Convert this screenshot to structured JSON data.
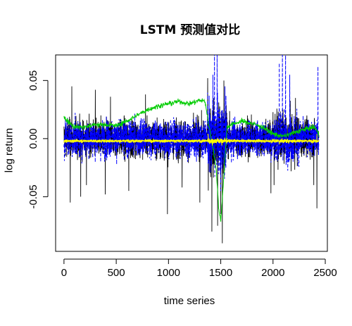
{
  "chart_data": {
    "type": "line",
    "title": "LSTM 预测值对比",
    "xlabel": "time series",
    "ylabel": "log return",
    "xlim": [
      -80,
      2520
    ],
    "ylim": [
      -0.097,
      0.072
    ],
    "xticks": [
      0,
      500,
      1000,
      1500,
      2000,
      2500
    ],
    "xtick_labels": [
      "0",
      "500",
      "1000",
      "1500",
      "2000",
      "2500"
    ],
    "yticks": [
      -0.05,
      0.0,
      0.05
    ],
    "ytick_labels": [
      "-0.05",
      "0.00",
      "0.05"
    ],
    "grid": false,
    "legend": "none",
    "n_points": 2440,
    "series": [
      {
        "role": "actual",
        "color": "#000000",
        "style": "solid",
        "base": 0.0,
        "noise_sd": 0.011,
        "spikes": [
          [
            60,
            -0.055
          ],
          [
            75,
            0.045
          ],
          [
            160,
            -0.05
          ],
          [
            215,
            -0.04
          ],
          [
            300,
            0.042
          ],
          [
            395,
            -0.048
          ],
          [
            445,
            0.036
          ],
          [
            620,
            -0.045
          ],
          [
            780,
            0.038
          ],
          [
            990,
            -0.065
          ],
          [
            1130,
            -0.042
          ],
          [
            1300,
            -0.055
          ],
          [
            1375,
            0.052
          ],
          [
            1415,
            -0.08
          ],
          [
            1470,
            -0.075
          ],
          [
            1500,
            -0.065
          ],
          [
            1515,
            -0.09
          ],
          [
            1530,
            0.05
          ],
          [
            1980,
            -0.047
          ],
          [
            2010,
            -0.04
          ],
          [
            2215,
            0.035
          ],
          [
            2390,
            -0.04
          ],
          [
            2420,
            -0.06
          ]
        ]
      },
      {
        "role": "predicted",
        "color": "#0000ff",
        "style": "dashed",
        "base": 0.0,
        "noise_sd": 0.011,
        "spikes": [
          [
            1425,
            0.055
          ],
          [
            1440,
            0.075
          ],
          [
            1465,
            0.078
          ],
          [
            1540,
            0.045
          ],
          [
            2060,
            0.065
          ],
          [
            2090,
            0.078
          ],
          [
            2120,
            0.078
          ],
          [
            2160,
            0.055
          ],
          [
            2430,
            0.062
          ],
          [
            1500,
            -0.045
          ]
        ]
      },
      {
        "role": "predicted",
        "color": "#00cc00",
        "style": "solid",
        "x": [
          0,
          100,
          200,
          300,
          400,
          500,
          600,
          700,
          800,
          900,
          1000,
          1100,
          1200,
          1300,
          1350,
          1380,
          1400,
          1430,
          1460,
          1480,
          1500,
          1520,
          1560,
          1600,
          1700,
          1800,
          1900,
          2000,
          2100,
          2200,
          2300,
          2400,
          2440
        ],
        "values": [
          0.018,
          0.01,
          0.01,
          0.012,
          0.012,
          0.011,
          0.015,
          0.02,
          0.025,
          0.028,
          0.03,
          0.032,
          0.03,
          0.033,
          0.032,
          0.015,
          0.005,
          -0.01,
          -0.03,
          -0.06,
          -0.07,
          -0.045,
          0.01,
          0.012,
          0.015,
          0.013,
          0.01,
          0.004,
          0.002,
          0.005,
          0.008,
          0.01,
          0.003
        ],
        "noise_sd": 0.0015
      },
      {
        "role": "baseline",
        "color": "#ff0000",
        "style": "solid",
        "constant": -0.0018
      },
      {
        "role": "predicted",
        "color": "#ffff00",
        "style": "solid",
        "base": -0.002,
        "noise_sd": 0.0009,
        "spikes": [
          [
            1380,
            0.004
          ],
          [
            1420,
            -0.006
          ],
          [
            1510,
            -0.006
          ],
          [
            2060,
            -0.005
          ],
          [
            2420,
            0.004
          ]
        ]
      }
    ]
  }
}
